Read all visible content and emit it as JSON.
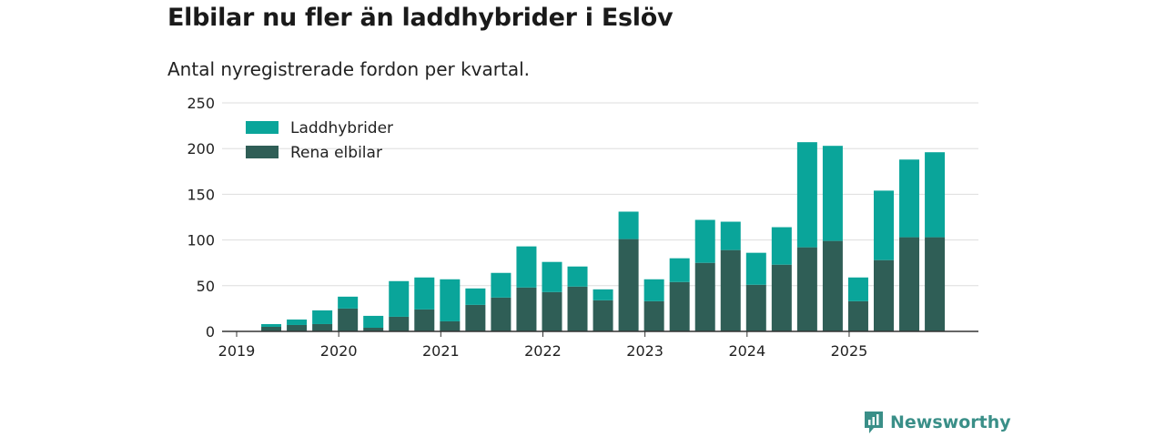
{
  "page": {
    "title": "Elbilar nu fler än laddhybrider i Eslöv",
    "subtitle": "Antal nyregistrerade fordon per kvartal.",
    "brand": "Newsworthy"
  },
  "colors": {
    "laddhybrider": "#0aa59a",
    "elbilar": "#2f5e56",
    "grid": "#dddddd",
    "axis": "#333333",
    "brand": "#3a8f88"
  },
  "chart_data": {
    "type": "bar",
    "stacked": true,
    "title": "Elbilar nu fler än laddhybrider i Eslöv",
    "subtitle": "Antal nyregistrerade fordon per kvartal.",
    "xlabel": "",
    "ylabel": "",
    "ylim": [
      0,
      250
    ],
    "yticks": [
      0,
      50,
      100,
      150,
      200,
      250
    ],
    "xtick_labels": [
      "2019",
      "2020",
      "2021",
      "2022",
      "2023",
      "2024",
      "2025"
    ],
    "legend_position": "top-left",
    "categories": [
      "2019 Q1",
      "2019 Q2",
      "2019 Q3",
      "2019 Q4",
      "2020 Q1",
      "2020 Q2",
      "2020 Q3",
      "2020 Q4",
      "2021 Q1",
      "2021 Q2",
      "2021 Q3",
      "2021 Q4",
      "2022 Q1",
      "2022 Q2",
      "2022 Q3",
      "2022 Q4",
      "2023 Q1",
      "2023 Q2",
      "2023 Q3",
      "2023 Q4",
      "2024 Q1",
      "2024 Q2",
      "2024 Q3",
      "2024 Q4",
      "2025 Q1",
      "2025 Q2",
      "2025 Q3",
      "2025 Q4"
    ],
    "series": [
      {
        "name": "Rena elbilar",
        "values": [
          0,
          5,
          7,
          8,
          25,
          4,
          16,
          24,
          11,
          29,
          37,
          48,
          43,
          49,
          34,
          101,
          33,
          54,
          75,
          89,
          51,
          73,
          92,
          99,
          33,
          78,
          103,
          103
        ]
      },
      {
        "name": "Laddhybrider",
        "values": [
          0,
          3,
          6,
          15,
          13,
          13,
          39,
          35,
          46,
          18,
          27,
          45,
          33,
          22,
          12,
          30,
          24,
          26,
          47,
          31,
          35,
          41,
          115,
          104,
          26,
          76,
          85,
          93
        ]
      }
    ]
  }
}
